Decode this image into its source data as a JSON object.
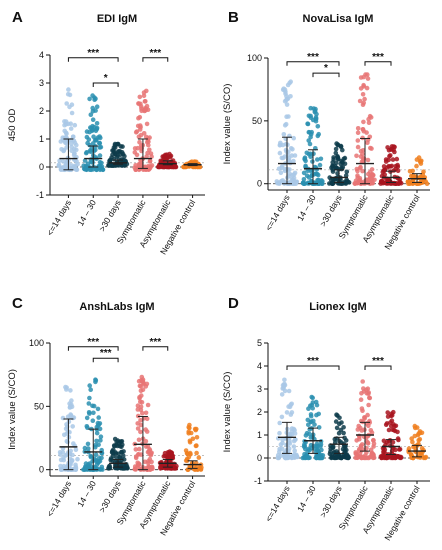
{
  "chart_data": [
    {
      "type": "scatter",
      "panel": "A",
      "title": "EDI IgM",
      "ylabel": "450 OD",
      "ylim": [
        -1,
        4
      ],
      "yticks": [
        "-1",
        "0",
        "1",
        "2",
        "3",
        "4"
      ],
      "categories": [
        "<=14 days",
        "14 – 30",
        ">30 days",
        "Symptomatic",
        "Asymptomatic",
        "Negative control"
      ],
      "colors": [
        "#a9c8e6",
        "#2a8fb0",
        "#0d3b4a",
        "#e87474",
        "#a8141f",
        "#f07f1f"
      ],
      "groups": [
        {
          "median": 0.3,
          "sd_low": -0.1,
          "sd_high": 1.0,
          "min": -0.1,
          "max": 2.8
        },
        {
          "median": 0.3,
          "sd_low": 0.0,
          "sd_high": 0.75,
          "min": -0.1,
          "max": 2.6
        },
        {
          "median": 0.15,
          "sd_low": 0.1,
          "sd_high": 0.25,
          "min": 0.05,
          "max": 0.9
        },
        {
          "median": 0.3,
          "sd_low": -0.05,
          "sd_high": 1.0,
          "min": -0.1,
          "max": 2.8
        },
        {
          "median": 0.12,
          "sd_low": 0.08,
          "sd_high": 0.22,
          "min": 0.0,
          "max": 0.5
        },
        {
          "median": 0.08,
          "sd_low": 0.05,
          "sd_high": 0.12,
          "min": 0.0,
          "max": 0.2
        }
      ],
      "cutoff": 0.15,
      "comparisons": [
        {
          "from": 0,
          "to": 2,
          "label": "***",
          "y": 3.9
        },
        {
          "from": 1,
          "to": 2,
          "label": "*",
          "y": 3.0
        },
        {
          "from": 3,
          "to": 4,
          "label": "***",
          "y": 3.9
        }
      ]
    },
    {
      "type": "scatter",
      "panel": "B",
      "title": "NovaLisa IgM",
      "ylabel": "Index value (S/CO)",
      "ylim": [
        -5,
        100
      ],
      "yticks": [
        "0",
        "50",
        "100"
      ],
      "categories": [
        "<=14 days",
        "14 – 30",
        ">30 days",
        "Symptomatic",
        "Asymptomatic",
        "Negative control"
      ],
      "colors": [
        "#a9c8e6",
        "#2a8fb0",
        "#0d3b4a",
        "#e87474",
        "#a8141f",
        "#f07f1f"
      ],
      "groups": [
        {
          "median": 16,
          "sd_low": 0,
          "sd_high": 37,
          "min": 0,
          "max": 88
        },
        {
          "median": 12,
          "sd_low": 0,
          "sd_high": 27,
          "min": 0,
          "max": 66
        },
        {
          "median": 5,
          "sd_low": 1,
          "sd_high": 11,
          "min": 0,
          "max": 32
        },
        {
          "median": 16,
          "sd_low": 0,
          "sd_high": 36,
          "min": 0,
          "max": 88
        },
        {
          "median": 5,
          "sd_low": 1,
          "sd_high": 10,
          "min": 0,
          "max": 32
        },
        {
          "median": 4,
          "sd_low": 1,
          "sd_high": 8,
          "min": 0,
          "max": 22
        }
      ],
      "cutoff": 11,
      "comparisons": [
        {
          "from": 0,
          "to": 2,
          "label": "***",
          "y": 97
        },
        {
          "from": 1,
          "to": 2,
          "label": "*",
          "y": 88
        },
        {
          "from": 3,
          "to": 4,
          "label": "***",
          "y": 97
        }
      ]
    },
    {
      "type": "scatter",
      "panel": "C",
      "title": "AnshLabs IgM",
      "ylabel": "Index value (S/CO)",
      "ylim": [
        -5,
        100
      ],
      "yticks": [
        "0",
        "50",
        "100"
      ],
      "categories": [
        "<=14 days",
        "14 – 30",
        ">30 days",
        "Symptomatic",
        "Asymptomatic",
        "Negative control"
      ],
      "colors": [
        "#a9c8e6",
        "#2a8fb0",
        "#0d3b4a",
        "#e87474",
        "#a8141f",
        "#f07f1f"
      ],
      "groups": [
        {
          "median": 18,
          "sd_low": 0,
          "sd_high": 40,
          "min": 0,
          "max": 67
        },
        {
          "median": 14,
          "sd_low": 0,
          "sd_high": 32,
          "min": 0,
          "max": 74
        },
        {
          "median": 5,
          "sd_low": 2,
          "sd_high": 8,
          "min": 1,
          "max": 25
        },
        {
          "median": 20,
          "sd_low": 0,
          "sd_high": 42,
          "min": 0,
          "max": 74
        },
        {
          "median": 5,
          "sd_low": 2,
          "sd_high": 8,
          "min": 1,
          "max": 15
        },
        {
          "median": 4,
          "sd_low": 1,
          "sd_high": 7,
          "min": 0,
          "max": 36
        }
      ],
      "cutoff": 11,
      "comparisons": [
        {
          "from": 0,
          "to": 2,
          "label": "***",
          "y": 97
        },
        {
          "from": 1,
          "to": 2,
          "label": "***",
          "y": 88
        },
        {
          "from": 3,
          "to": 4,
          "label": "***",
          "y": 97
        }
      ]
    },
    {
      "type": "scatter",
      "panel": "D",
      "title": "Lionex IgM",
      "ylabel": "Index value (S/CO)",
      "ylim": [
        -1,
        5
      ],
      "yticks": [
        "-1",
        "0",
        "1",
        "2",
        "3",
        "4",
        "5"
      ],
      "categories": [
        "<=14 days",
        "14 – 30",
        ">30 days",
        "Symptomatic",
        "Asymptomatic",
        "Negative control"
      ],
      "colors": [
        "#a9c8e6",
        "#2a8fb0",
        "#0d3b4a",
        "#e87474",
        "#a8141f",
        "#f07f1f"
      ],
      "groups": [
        {
          "median": 0.9,
          "sd_low": 0.2,
          "sd_high": 1.55,
          "min": 0.0,
          "max": 3.4
        },
        {
          "median": 0.75,
          "sd_low": 0.2,
          "sd_high": 1.3,
          "min": 0.0,
          "max": 2.8
        },
        {
          "median": 0.6,
          "sd_low": 0.2,
          "sd_high": 0.9,
          "min": 0.0,
          "max": 2.0
        },
        {
          "median": 1.0,
          "sd_low": 0.3,
          "sd_high": 1.55,
          "min": 0.0,
          "max": 3.35
        },
        {
          "median": 0.5,
          "sd_low": 0.15,
          "sd_high": 0.8,
          "min": 0.0,
          "max": 2.0
        },
        {
          "median": 0.3,
          "sd_low": 0.05,
          "sd_high": 0.55,
          "min": 0.0,
          "max": 1.4
        }
      ],
      "cutoff": 0.5,
      "comparisons": [
        {
          "from": 0,
          "to": 2,
          "label": "***",
          "y": 4.0
        },
        {
          "from": 3,
          "to": 4,
          "label": "***",
          "y": 4.0
        }
      ]
    }
  ]
}
